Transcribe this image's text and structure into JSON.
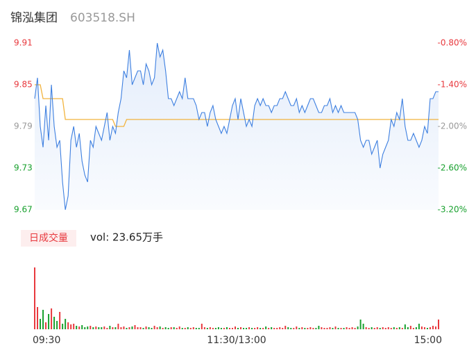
{
  "header": {
    "name": "锦泓集团",
    "code": "603518.SH"
  },
  "chart_data": [
    {
      "type": "line",
      "ylim": [
        9.67,
        9.91
      ],
      "yticks": [
        9.67,
        9.73,
        9.79,
        9.85,
        9.91
      ],
      "y2lim": [
        -3.2,
        -0.8
      ],
      "y2ticks": [
        {
          "value": -3.2,
          "label": "-3.20%"
        },
        {
          "value": -2.6,
          "label": "-2.60%"
        },
        {
          "value": -2.0,
          "label": "-2.00%"
        },
        {
          "value": -1.4,
          "label": "-1.40%"
        },
        {
          "value": -0.8,
          "label": "-0.80%"
        }
      ],
      "xlim": [
        0,
        145
      ],
      "xticks": [
        {
          "value": 0,
          "label": "09:30"
        },
        {
          "value": 72.5,
          "label": "11:30/13:00"
        },
        {
          "value": 145,
          "label": "15:00"
        }
      ],
      "up_color": "#e8383d",
      "down_color": "#17a02d",
      "flat_color": "#999999",
      "series": [
        {
          "color": "#3d7fe0",
          "values": [
            9.83,
            9.86,
            9.79,
            9.76,
            9.82,
            9.77,
            9.85,
            9.79,
            9.76,
            9.77,
            9.71,
            9.67,
            9.69,
            9.77,
            9.79,
            9.76,
            9.78,
            9.74,
            9.72,
            9.71,
            9.77,
            9.76,
            9.79,
            9.78,
            9.77,
            9.79,
            9.81,
            9.77,
            9.79,
            9.78,
            9.81,
            9.83,
            9.87,
            9.86,
            9.9,
            9.85,
            9.86,
            9.87,
            9.87,
            9.85,
            9.88,
            9.87,
            9.85,
            9.86,
            9.91,
            9.89,
            9.9,
            9.87,
            9.83,
            9.83,
            9.82,
            9.83,
            9.84,
            9.83,
            9.86,
            9.83,
            9.83,
            9.83,
            9.82,
            9.8,
            9.81,
            9.81,
            9.79,
            9.81,
            9.82,
            9.8,
            9.79,
            9.78,
            9.79,
            9.78,
            9.8,
            9.82,
            9.83,
            9.8,
            9.83,
            9.81,
            9.79,
            9.8,
            9.79,
            9.82,
            9.83,
            9.82,
            9.83,
            9.82,
            9.82,
            9.81,
            9.82,
            9.82,
            9.83,
            9.83,
            9.84,
            9.83,
            9.82,
            9.82,
            9.83,
            9.81,
            9.82,
            9.81,
            9.82,
            9.83,
            9.83,
            9.82,
            9.81,
            9.81,
            9.82,
            9.82,
            9.83,
            9.81,
            9.82,
            9.81,
            9.82,
            9.81,
            9.81,
            9.81,
            9.81,
            9.81,
            9.8,
            9.77,
            9.76,
            9.77,
            9.77,
            9.75,
            9.76,
            9.77,
            9.73,
            9.75,
            9.76,
            9.77,
            9.8,
            9.79,
            9.81,
            9.8,
            9.83,
            9.79,
            9.77,
            9.77,
            9.78,
            9.77,
            9.76,
            9.77,
            9.79,
            9.78,
            9.83,
            9.83,
            9.84,
            9.84
          ]
        },
        {
          "color": "#f2b33d",
          "values": [
            9.85,
            9.85,
            9.85,
            9.83,
            9.83,
            9.83,
            9.83,
            9.83,
            9.83,
            9.83,
            9.83,
            9.8,
            9.8,
            9.8,
            9.8,
            9.8,
            9.8,
            9.8,
            9.8,
            9.8,
            9.8,
            9.8,
            9.8,
            9.8,
            9.8,
            9.8,
            9.8,
            9.8,
            9.8,
            9.79,
            9.79,
            9.79,
            9.79,
            9.8,
            9.8,
            9.8,
            9.8,
            9.8,
            9.8,
            9.8,
            9.8,
            9.8,
            9.8,
            9.8,
            9.8,
            9.8,
            9.8,
            9.8,
            9.8,
            9.8,
            9.8,
            9.8,
            9.8,
            9.8,
            9.8,
            9.8,
            9.8,
            9.8,
            9.8,
            9.8,
            9.8,
            9.8,
            9.8,
            9.8,
            9.8,
            9.8,
            9.8,
            9.8,
            9.8,
            9.8,
            9.8,
            9.8,
            9.8,
            9.8,
            9.8,
            9.8,
            9.8,
            9.8,
            9.8,
            9.8,
            9.8,
            9.8,
            9.8,
            9.8,
            9.8,
            9.8,
            9.8,
            9.8,
            9.8,
            9.8,
            9.8,
            9.8,
            9.8,
            9.8,
            9.8,
            9.8,
            9.8,
            9.8,
            9.8,
            9.8,
            9.8,
            9.8,
            9.8,
            9.8,
            9.8,
            9.8,
            9.8,
            9.8,
            9.8,
            9.8,
            9.8,
            9.8,
            9.8,
            9.8,
            9.8,
            9.8,
            9.8,
            9.8,
            9.8,
            9.8,
            9.8,
            9.8,
            9.8,
            9.8,
            9.8,
            9.8,
            9.8,
            9.8,
            9.8,
            9.8,
            9.8,
            9.8,
            9.8,
            9.8,
            9.8,
            9.8,
            9.8,
            9.8,
            9.8,
            9.8,
            9.8,
            9.8,
            9.8,
            9.8,
            9.8,
            9.8
          ]
        }
      ]
    },
    {
      "type": "bar",
      "title": "日成交量",
      "annotation": "vol: 23.65万手",
      "values": [
        89,
        32,
        15,
        28,
        10,
        22,
        30,
        18,
        12,
        25,
        8,
        15,
        10,
        7,
        8,
        5,
        4,
        6,
        3,
        4,
        5,
        3,
        4,
        3,
        3,
        4,
        2,
        5,
        3,
        3,
        8,
        3,
        4,
        2,
        3,
        4,
        6,
        3,
        3,
        2,
        4,
        3,
        2,
        5,
        3,
        4,
        2,
        3,
        2,
        3,
        3,
        2,
        4,
        2,
        2,
        3,
        2,
        3,
        2,
        2,
        8,
        3,
        2,
        3,
        2,
        2,
        3,
        2,
        2,
        3,
        2,
        2,
        4,
        2,
        3,
        2,
        2,
        3,
        2,
        2,
        3,
        2,
        2,
        4,
        2,
        3,
        2,
        2,
        3,
        2,
        5,
        3,
        2,
        2,
        4,
        2,
        3,
        2,
        2,
        3,
        2,
        2,
        5,
        3,
        2,
        2,
        3,
        2,
        4,
        2,
        2,
        2,
        3,
        2,
        3,
        2,
        4,
        14,
        8,
        3,
        2,
        3,
        2,
        3,
        2,
        3,
        2,
        3,
        2,
        3,
        2,
        3,
        2,
        7,
        3,
        5,
        2,
        3,
        8,
        4,
        3,
        2,
        3,
        5,
        4,
        14
      ]
    }
  ]
}
